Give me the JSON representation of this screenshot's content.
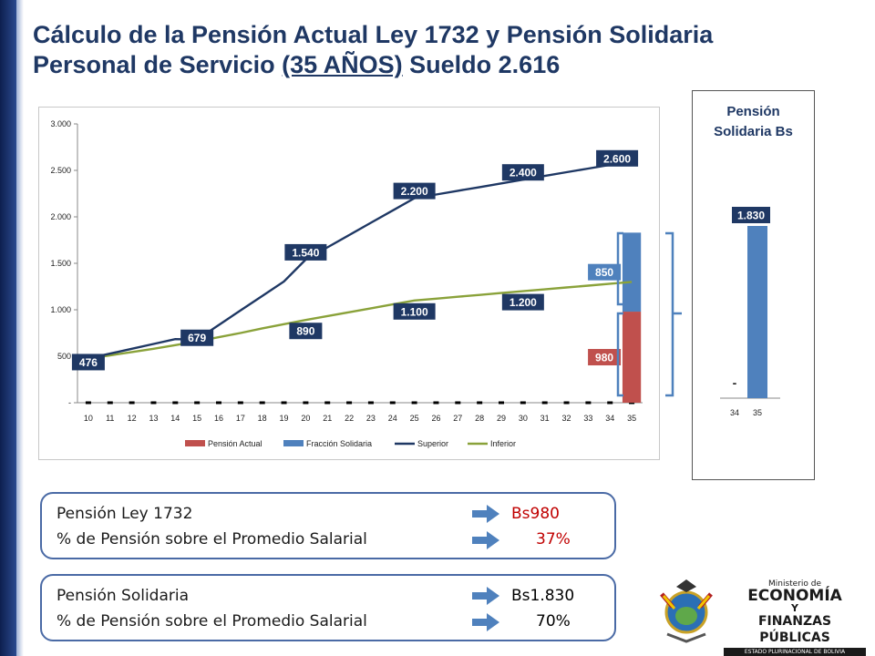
{
  "title": {
    "line1": "Cálculo de la Pensión Actual Ley 1732 y Pensión Solidaria",
    "line2_prefix": "Personal de Servicio ",
    "line2_underlined": "(35 AÑOS)",
    "line2_suffix": " Sueldo 2.616"
  },
  "chart_data": [
    {
      "type": "line",
      "categories": [
        "10",
        "11",
        "12",
        "13",
        "14",
        "15",
        "16",
        "17",
        "18",
        "19",
        "20",
        "21",
        "22",
        "23",
        "24",
        "25",
        "26",
        "27",
        "28",
        "29",
        "30",
        "31",
        "32",
        "33",
        "34",
        "35"
      ],
      "ylim": [
        0,
        3000
      ],
      "y_ticks": [
        "-",
        "500",
        "1.000",
        "1.500",
        "2.000",
        "2.500",
        "3.000"
      ],
      "legend_position": "bottom",
      "series": [
        {
          "name": "Pensión Actual",
          "kind": "bar",
          "color": "#c0504d",
          "values": [
            0,
            0,
            0,
            0,
            0,
            0,
            0,
            0,
            0,
            0,
            0,
            0,
            0,
            0,
            0,
            0,
            0,
            0,
            0,
            0,
            0,
            0,
            0,
            0,
            0,
            980
          ]
        },
        {
          "name": "Fracción Solidaria",
          "kind": "bar",
          "color": "#4f81bd",
          "values": [
            0,
            0,
            0,
            0,
            0,
            0,
            0,
            0,
            0,
            0,
            0,
            0,
            0,
            0,
            0,
            0,
            0,
            0,
            0,
            0,
            0,
            0,
            0,
            0,
            0,
            850
          ]
        },
        {
          "name": "Superior",
          "kind": "line",
          "color": "#1f3864",
          "values": [
            476,
            528,
            580,
            632,
            684,
            679,
            836,
            992,
            1148,
            1304,
            1540,
            1672,
            1804,
            1936,
            2068,
            2200,
            2240,
            2280,
            2320,
            2360,
            2400,
            2440,
            2480,
            2520,
            2560,
            2600
          ]
        },
        {
          "name": "Inferior",
          "kind": "line",
          "color": "#8aa23a",
          "values": [
            476,
            510,
            545,
            580,
            620,
            660,
            705,
            750,
            800,
            845,
            890,
            932,
            974,
            1016,
            1058,
            1100,
            1120,
            1140,
            1160,
            1180,
            1200,
            1220,
            1240,
            1260,
            1280,
            1300
          ]
        }
      ],
      "data_labels": [
        {
          "text": "476",
          "x": "10",
          "y": 476
        },
        {
          "text": "679",
          "x": "15",
          "y": 679
        },
        {
          "text": "1.540",
          "x": "20",
          "y": 1540
        },
        {
          "text": "890",
          "x": "20",
          "y": 890
        },
        {
          "text": "2.200",
          "x": "25",
          "y": 2200
        },
        {
          "text": "1.100",
          "x": "25",
          "y": 1100
        },
        {
          "text": "2.400",
          "x": "30",
          "y": 2400
        },
        {
          "text": "1.200",
          "x": "30",
          "y": 1200
        },
        {
          "text": "2.600",
          "x": "35",
          "y": 2600
        },
        {
          "text": "850",
          "x": "35",
          "y": 1405
        },
        {
          "text": "980",
          "x": "35",
          "y": 490
        }
      ]
    },
    {
      "type": "bar",
      "title": "Pensión Solidaria Bs",
      "categories": [
        "34",
        "35"
      ],
      "values": [
        0,
        1830
      ],
      "value_labels": [
        "-",
        "1.830"
      ],
      "color": "#4f81bd"
    }
  ],
  "side_chart": {
    "title_line1": "Pensión",
    "title_line2": "Solidaria Bs"
  },
  "box1": {
    "row1_label": "Pensión Ley 1732",
    "row1_value": "Bs980",
    "row2_label": "% de Pensión sobre el Promedio Salarial",
    "row2_value": "37%",
    "value_color": "#c00000"
  },
  "box2": {
    "row1_label": "Pensión Solidaria",
    "row1_value": "Bs1.830",
    "row2_label": "% de Pensión sobre el Promedio Salarial",
    "row2_value": "70%",
    "value_color": "#1a1a1a"
  },
  "logo": {
    "line1": "Ministerio de",
    "line2": "ECONOMÍA",
    "line3": "Y",
    "line4": "FINANZAS PÚBLICAS",
    "line5": "ESTADO PLURINACIONAL DE BOLIVIA"
  },
  "colors": {
    "title": "#1f3864",
    "label_box": "#1f3864",
    "arrow": "#4f81bd",
    "bracket": "#4f81bd"
  }
}
